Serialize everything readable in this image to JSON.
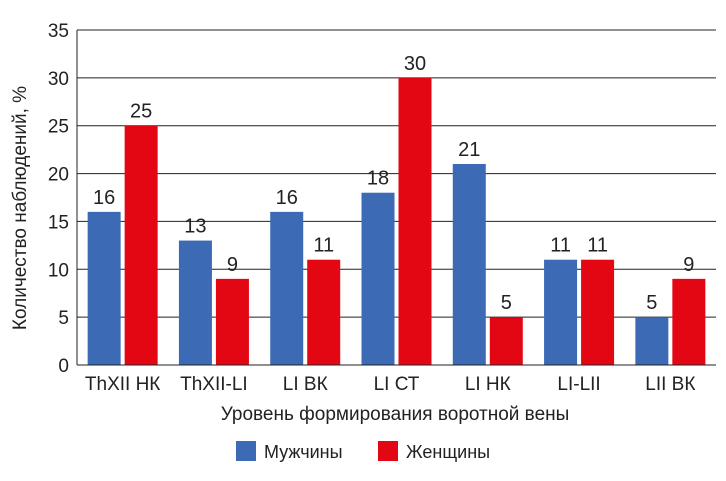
{
  "chart_data": {
    "type": "bar",
    "categories": [
      "ThXII НК",
      "ThXII-LI",
      "LI ВК",
      "LI СТ",
      "LI НК",
      "LI-LII",
      "LII ВК"
    ],
    "series": [
      {
        "name": "Мужчины",
        "color": "#3c6ab4",
        "values": [
          16,
          13,
          16,
          18,
          21,
          11,
          5
        ]
      },
      {
        "name": "Женщины",
        "color": "#e30613",
        "values": [
          25,
          9,
          11,
          30,
          5,
          11,
          9
        ]
      }
    ],
    "xlabel": "Уровень формирования воротной вены",
    "ylabel": "Количество наблюдений, %",
    "ylim": [
      0,
      35
    ],
    "yticks": [
      0,
      5,
      10,
      15,
      20,
      25,
      30,
      35
    ],
    "grid": true,
    "legend_position": "bottom"
  }
}
